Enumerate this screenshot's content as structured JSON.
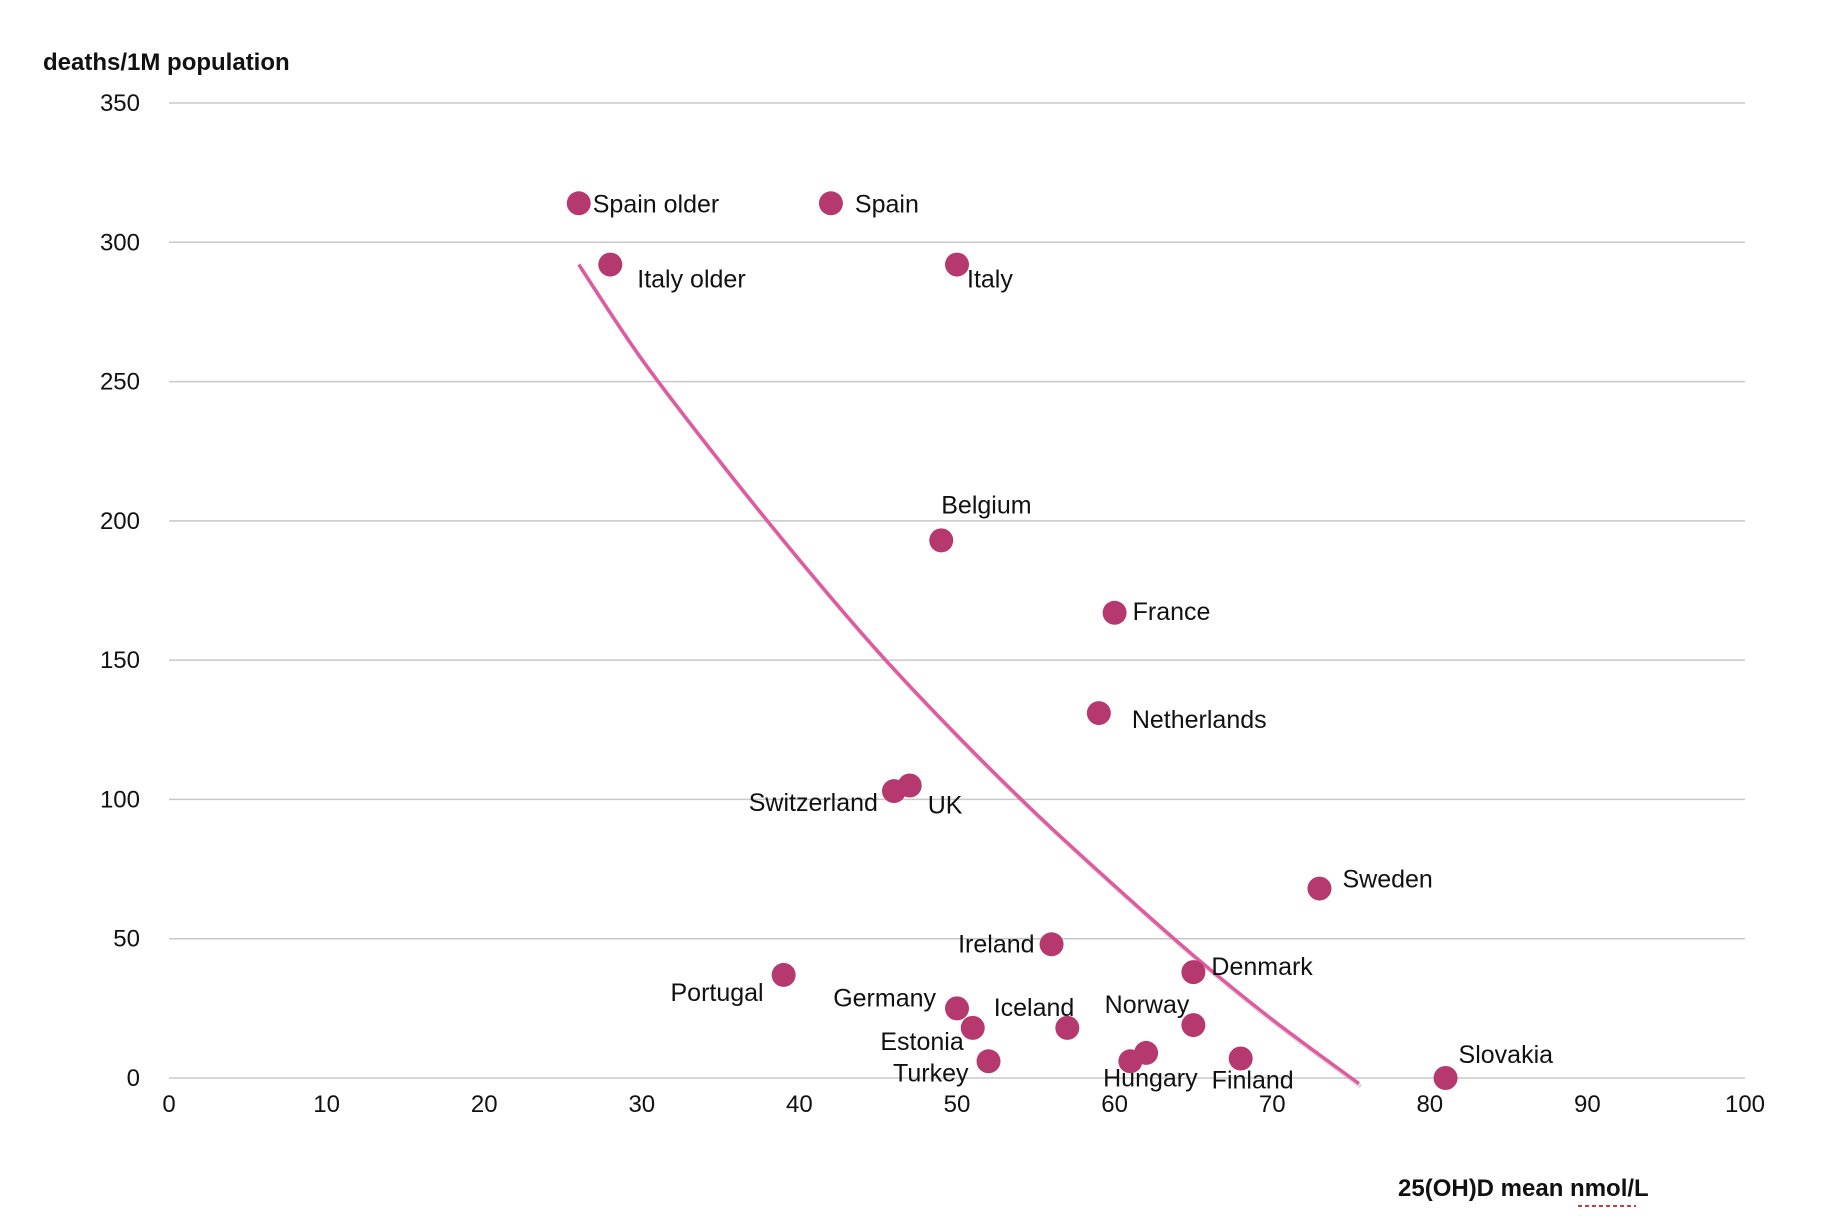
{
  "chart_data": {
    "type": "scatter",
    "xlabel": "25(OH)D mean nmol/L",
    "ylabel": "deaths/1M population",
    "xlim": [
      0,
      100
    ],
    "ylim": [
      0,
      350
    ],
    "x_ticks": [
      0,
      10,
      20,
      30,
      40,
      50,
      60,
      70,
      80,
      90,
      100
    ],
    "y_ticks": [
      0,
      50,
      100,
      150,
      200,
      250,
      300,
      350
    ],
    "grid": "horizontal",
    "marker_color": "#b5386e",
    "trendline_color": "#e05aa0",
    "points": [
      {
        "label": "Spain older",
        "x": 26,
        "y": 314
      },
      {
        "label": "Spain",
        "x": 42,
        "y": 314
      },
      {
        "label": "Italy older",
        "x": 28,
        "y": 292
      },
      {
        "label": "Italy",
        "x": 50,
        "y": 292
      },
      {
        "label": "Belgium",
        "x": 49,
        "y": 193
      },
      {
        "label": "France",
        "x": 60,
        "y": 167
      },
      {
        "label": "Netherlands",
        "x": 59,
        "y": 131
      },
      {
        "label": "Switzerland",
        "x": 46,
        "y": 103
      },
      {
        "label": "UK",
        "x": 47,
        "y": 105
      },
      {
        "label": "Sweden",
        "x": 73,
        "y": 68
      },
      {
        "label": "Ireland",
        "x": 56,
        "y": 48
      },
      {
        "label": "Denmark",
        "x": 65,
        "y": 38
      },
      {
        "label": "Portugal",
        "x": 39,
        "y": 37
      },
      {
        "label": "Germany",
        "x": 50,
        "y": 25
      },
      {
        "label": "Estonia",
        "x": 51,
        "y": 18
      },
      {
        "label": "Iceland",
        "x": 57,
        "y": 18
      },
      {
        "label": "Norway",
        "x": 65,
        "y": 19
      },
      {
        "label": "Turkey",
        "x": 52,
        "y": 6
      },
      {
        "label": "Hungary",
        "x": 61,
        "y": 6
      },
      {
        "label": "Hungary",
        "x": 62,
        "y": 9
      },
      {
        "label": "Finland",
        "x": 68,
        "y": 7
      },
      {
        "label": "Slovakia",
        "x": 81,
        "y": 0
      }
    ],
    "trendline": {
      "type": "curve",
      "points": [
        [
          26,
          292
        ],
        [
          30,
          258
        ],
        [
          35,
          221
        ],
        [
          40,
          186
        ],
        [
          45,
          153
        ],
        [
          50,
          123
        ],
        [
          55,
          95
        ],
        [
          60,
          69
        ],
        [
          65,
          44
        ],
        [
          70,
          21
        ],
        [
          75.5,
          -2
        ]
      ]
    }
  }
}
